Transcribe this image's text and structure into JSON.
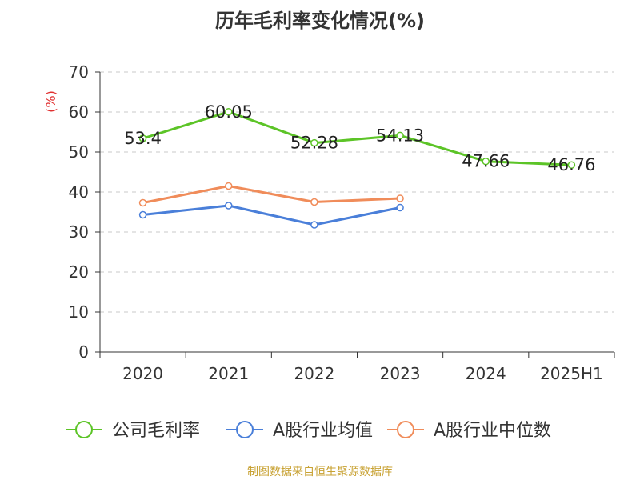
{
  "title": "历年毛利率变化情况(%)",
  "footer": "制图数据来自恒生聚源数据库",
  "chart_data": {
    "type": "line",
    "title": "历年毛利率变化情况(%)",
    "ylabel": "(%)",
    "xlabel": "",
    "categories": [
      "2020",
      "2021",
      "2022",
      "2023",
      "2024",
      "2025H1"
    ],
    "ylim": [
      0,
      70
    ],
    "yticks": [
      0,
      10,
      20,
      30,
      40,
      50,
      60,
      70
    ],
    "grid": true,
    "legend_position": "bottom",
    "series": [
      {
        "name": "公司毛利率",
        "color": "#5cc427",
        "values": [
          53.4,
          60.05,
          52.28,
          54.13,
          47.66,
          46.76
        ],
        "labels": [
          "53.4",
          "60.05",
          "52.28",
          "54.13",
          "47.66",
          "46.76"
        ]
      },
      {
        "name": "A股行业均值",
        "color": "#4a7fd9",
        "values": [
          34.3,
          36.6,
          31.8,
          36.1,
          null,
          null
        ]
      },
      {
        "name": "A股行业中位数",
        "color": "#f08c5a",
        "values": [
          37.3,
          41.5,
          37.5,
          38.4,
          null,
          null
        ]
      }
    ]
  }
}
